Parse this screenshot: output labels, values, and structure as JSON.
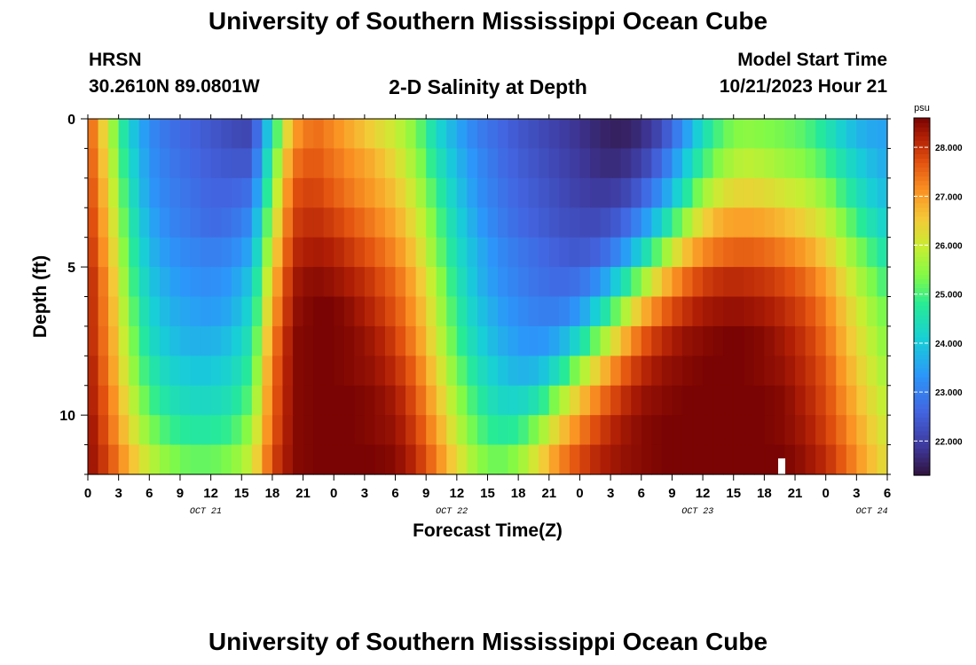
{
  "header": {
    "title": "University of Southern Mississippi Ocean Cube",
    "station": "HRSN",
    "coords": "30.2610N  89.0801W",
    "subtitle": "2-D Salinity at Depth",
    "model_label": "Model Start Time",
    "model_time": "10/21/2023 Hour 21"
  },
  "footer": {
    "title": "University of Southern Mississippi Ocean Cube"
  },
  "chart_data": {
    "type": "heatmap",
    "title": "2-D Salinity at Depth",
    "xlabel": "Forecast Time(Z)",
    "ylabel": "Depth (ft)",
    "x_range_hours": [
      0,
      78
    ],
    "x_tick_hours": [
      0,
      3,
      6,
      9,
      12,
      15,
      18,
      21,
      24,
      27,
      30,
      33,
      36,
      39,
      42,
      45,
      48,
      51,
      54,
      57,
      60,
      63,
      66,
      69,
      72,
      75,
      78
    ],
    "x_tick_labels": [
      "0",
      "3",
      "6",
      "9",
      "12",
      "15",
      "18",
      "21",
      "0",
      "3",
      "6",
      "9",
      "12",
      "15",
      "18",
      "21",
      "0",
      "3",
      "6",
      "9",
      "12",
      "15",
      "18",
      "21",
      "0",
      "3",
      "6"
    ],
    "date_labels": [
      {
        "hour": 11.5,
        "label": "OCT 21"
      },
      {
        "hour": 35.5,
        "label": "OCT 22"
      },
      {
        "hour": 59.5,
        "label": "OCT 23"
      },
      {
        "hour": 76.5,
        "label": "OCT 24"
      }
    ],
    "y_range_ft": [
      0,
      12
    ],
    "y_ticks": [
      0,
      5,
      10
    ],
    "y_labels": [
      "0",
      "5",
      "10"
    ],
    "colorbar": {
      "unit": "psu",
      "min": 21.3,
      "max": 28.6,
      "ticks": [
        22.0,
        23.0,
        24.0,
        25.0,
        26.0,
        27.0,
        28.0
      ],
      "tick_labels": [
        "22.000",
        "23.000",
        "24.000",
        "25.000",
        "26.000",
        "27.000",
        "28.000"
      ]
    },
    "salinity_profile_psu": {
      "depth_levels_ft": [
        0.5,
        1.5,
        2.5,
        3.5,
        4.5,
        5.5,
        6.5,
        7.5,
        8.5,
        9.5,
        10.5,
        11.5
      ],
      "hours": [
        0,
        2,
        4,
        6,
        8,
        10,
        12,
        14,
        16,
        18,
        20,
        22,
        24,
        26,
        28,
        30,
        32,
        34,
        36,
        38,
        40,
        42,
        44,
        46,
        48,
        50,
        52,
        54,
        56,
        58,
        60,
        62,
        64,
        66,
        68,
        70,
        72,
        74,
        76,
        78
      ],
      "values": [
        [
          27.8,
          26.0,
          24.2,
          23.2,
          22.8,
          22.6,
          22.4,
          22.2,
          22.1,
          24.5,
          27.0,
          27.5,
          27.2,
          26.8,
          26.4,
          26.0,
          25.4,
          24.3,
          23.6,
          23.0,
          22.7,
          22.4,
          22.2,
          22.0,
          21.8,
          21.6,
          21.5,
          21.7,
          22.2,
          23.2,
          24.4,
          25.2,
          25.5,
          25.4,
          25.3,
          25.1,
          24.6,
          24.0,
          23.6,
          23.5
        ],
        [
          27.9,
          26.2,
          24.4,
          23.3,
          22.9,
          22.7,
          22.5,
          22.4,
          22.4,
          25.0,
          27.4,
          27.7,
          27.4,
          27.1,
          26.8,
          26.3,
          25.6,
          24.6,
          23.8,
          23.2,
          22.8,
          22.5,
          22.3,
          22.1,
          21.9,
          21.7,
          21.7,
          22.0,
          22.7,
          23.8,
          24.9,
          25.6,
          25.9,
          25.8,
          25.6,
          25.4,
          25.0,
          24.4,
          23.9,
          23.6
        ],
        [
          28.0,
          26.4,
          24.6,
          23.4,
          23.0,
          22.8,
          22.6,
          22.6,
          22.8,
          25.4,
          27.7,
          27.9,
          27.6,
          27.3,
          27.0,
          26.6,
          25.9,
          24.9,
          24.0,
          23.3,
          22.9,
          22.6,
          22.4,
          22.2,
          22.0,
          21.9,
          22.0,
          22.5,
          23.3,
          24.4,
          25.6,
          26.2,
          26.4,
          26.3,
          26.1,
          25.9,
          25.5,
          24.8,
          24.2,
          23.8
        ],
        [
          28.1,
          26.6,
          24.8,
          23.6,
          23.1,
          22.9,
          22.7,
          22.8,
          23.2,
          25.8,
          27.9,
          28.1,
          27.9,
          27.6,
          27.3,
          26.9,
          26.2,
          25.2,
          24.2,
          23.5,
          23.0,
          22.7,
          22.5,
          22.3,
          22.2,
          22.2,
          22.5,
          23.2,
          24.2,
          25.4,
          26.4,
          26.9,
          27.0,
          26.9,
          26.7,
          26.4,
          26.0,
          25.3,
          24.6,
          24.1
        ],
        [
          28.2,
          26.8,
          25.0,
          23.8,
          23.3,
          23.1,
          23.0,
          23.1,
          23.6,
          26.2,
          28.1,
          28.3,
          28.2,
          27.9,
          27.6,
          27.2,
          26.5,
          25.4,
          24.4,
          23.7,
          23.2,
          22.9,
          22.7,
          22.5,
          22.4,
          22.6,
          23.2,
          24.2,
          25.4,
          26.5,
          27.2,
          27.5,
          27.6,
          27.5,
          27.3,
          27.0,
          26.5,
          25.8,
          25.1,
          24.5
        ],
        [
          28.3,
          27.0,
          25.2,
          24.0,
          23.5,
          23.3,
          23.2,
          23.4,
          24.0,
          26.6,
          28.3,
          28.5,
          28.4,
          28.2,
          27.9,
          27.5,
          26.8,
          25.7,
          24.6,
          23.8,
          23.3,
          23.0,
          22.8,
          22.7,
          22.8,
          23.3,
          24.3,
          25.5,
          26.6,
          27.4,
          27.9,
          28.1,
          28.1,
          28.0,
          27.8,
          27.5,
          27.0,
          26.2,
          25.5,
          24.9
        ],
        [
          28.3,
          27.1,
          25.4,
          24.2,
          23.7,
          23.5,
          23.4,
          23.6,
          24.3,
          26.9,
          28.4,
          28.6,
          28.6,
          28.4,
          28.1,
          27.7,
          27.0,
          25.9,
          24.8,
          24.0,
          23.5,
          23.2,
          23.0,
          23.0,
          23.4,
          24.3,
          25.5,
          26.7,
          27.5,
          28.0,
          28.3,
          28.4,
          28.4,
          28.3,
          28.1,
          27.8,
          27.3,
          26.5,
          25.8,
          25.2
        ],
        [
          28.3,
          27.2,
          25.6,
          24.4,
          23.9,
          23.7,
          23.7,
          23.9,
          24.6,
          27.2,
          28.5,
          28.6,
          28.6,
          28.5,
          28.3,
          27.9,
          27.2,
          26.1,
          25.0,
          24.2,
          23.7,
          23.4,
          23.3,
          23.6,
          24.4,
          25.5,
          26.6,
          27.6,
          28.1,
          28.4,
          28.5,
          28.6,
          28.6,
          28.5,
          28.3,
          28.0,
          27.5,
          26.7,
          26.0,
          25.4
        ],
        [
          28.4,
          27.3,
          25.8,
          24.7,
          24.2,
          24.0,
          24.0,
          24.2,
          24.9,
          27.4,
          28.5,
          28.6,
          28.6,
          28.5,
          28.4,
          28.1,
          27.5,
          26.4,
          25.3,
          24.5,
          24.0,
          23.7,
          23.8,
          24.5,
          25.6,
          26.6,
          27.5,
          28.1,
          28.4,
          28.5,
          28.6,
          28.6,
          28.6,
          28.5,
          28.4,
          28.1,
          27.7,
          26.9,
          26.2,
          25.6
        ],
        [
          28.4,
          27.5,
          26.1,
          25.0,
          24.5,
          24.3,
          24.3,
          24.5,
          25.2,
          27.5,
          28.5,
          28.6,
          28.6,
          28.6,
          28.5,
          28.3,
          27.7,
          26.7,
          25.6,
          24.8,
          24.3,
          24.2,
          24.6,
          25.6,
          26.6,
          27.4,
          28.0,
          28.4,
          28.5,
          28.6,
          28.6,
          28.6,
          28.6,
          28.6,
          28.5,
          28.2,
          27.8,
          27.1,
          26.4,
          25.8
        ],
        [
          28.5,
          27.6,
          26.4,
          25.4,
          24.9,
          24.7,
          24.7,
          24.9,
          25.6,
          27.6,
          28.5,
          28.6,
          28.6,
          28.6,
          28.5,
          28.4,
          27.9,
          27.0,
          25.9,
          25.1,
          24.7,
          24.8,
          25.5,
          26.5,
          27.3,
          27.9,
          28.3,
          28.5,
          28.6,
          28.6,
          28.6,
          28.6,
          28.6,
          28.6,
          28.5,
          28.3,
          27.9,
          27.3,
          26.6,
          26.0
        ],
        [
          28.5,
          27.8,
          26.8,
          25.9,
          25.4,
          25.2,
          25.2,
          25.4,
          26.0,
          27.8,
          28.5,
          28.6,
          28.6,
          28.6,
          28.6,
          28.5,
          28.1,
          27.3,
          26.3,
          25.5,
          25.2,
          25.5,
          26.3,
          27.2,
          27.8,
          28.2,
          28.4,
          28.5,
          28.6,
          28.6,
          28.6,
          28.6,
          28.6,
          28.6,
          28.6,
          28.4,
          28.1,
          27.5,
          26.8,
          26.2
        ]
      ]
    }
  }
}
